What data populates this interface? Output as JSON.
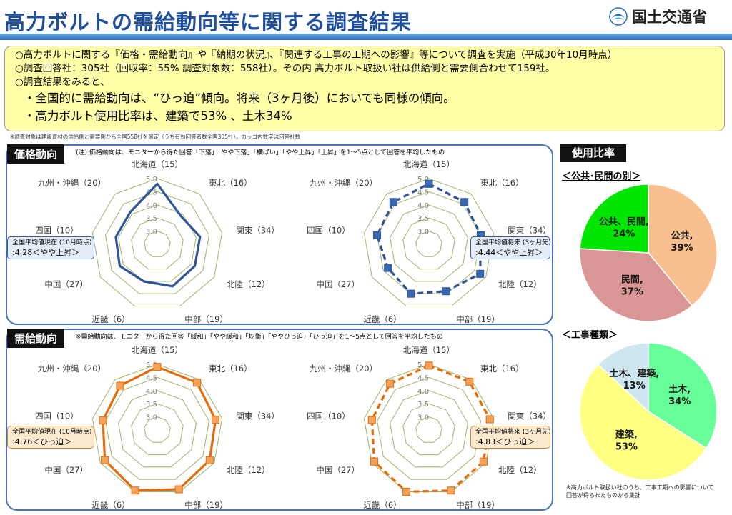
{
  "header": {
    "title": "高力ボルトの需給動向等に関する調査結果",
    "logo_text": "国土交通省"
  },
  "summary": {
    "line1": "○高力ボルトに関する『価格・需給動向』や『納期の状況』、『関連する工事の工期への影響』等について調査を実施（平成30年10月時点）",
    "line2": "○調査回答社：305社（回収率：55% 調査対象数：558社）。その内 高力ボルト取扱い社は供給側と需要側合わせて159社。",
    "line3": "○調査結果をみると、",
    "line4": "・全国的に需給動向は、“ひっ迫”傾向。将来（3ヶ月後）においても同様の傾向。",
    "line5": "・高力ボルト使用比率は、建築で53% 、土木34%"
  },
  "footnote": "※調査対象は建設資材の供給側と需要側から全国558社を選定（うち有効回答者数全国305社）。カッコ内数字は回答社数",
  "price": {
    "label": "価格動向",
    "note": "(注) 価格動向は、モニターから得た回答「下落」「やや下落」「横ばい」「やや上昇」「上昇」を1～5点として回答を平均したもの",
    "current_title": "全国平均値現在 (10月時点)",
    "current_value": ":4.28＜やや上昇＞",
    "future_title": "全国平均値将来 (3ヶ月先)",
    "future_value": ":4.44＜やや上昇＞"
  },
  "demand": {
    "label": "需給動向",
    "note": "※需給動向は、モニターから得た回答「緩和」「やや緩和」「均衡」「ややひっ迫」「ひっ迫」を1～5点として回答を平均したもの",
    "current_title": "全国平均値現在 (10月時点)",
    "current_value": ":4.76＜ひっ迫＞",
    "future_title": "全国平均値将来 (3ヶ月先)",
    "future_value": ":4.83＜ひっ迫＞"
  },
  "ratio": {
    "label": "使用比率",
    "pie1_title": "＜公共･民間の別＞",
    "pie2_title": "＜工事種類＞",
    "note_line1": "※高力ボルト取扱い社のうち、工事工期への影響について",
    "note_line2": "回答が得られたものから集計"
  },
  "chart_data": [
    {
      "type": "radar",
      "name": "価格動向 現在",
      "categories": [
        "北海道（15）",
        "東北（16）",
        "関東（34）",
        "北陸（12）",
        "中部（19）",
        "近畿（6）",
        "中国（27）",
        "四国（10）",
        "九州・沖縄（20）"
      ],
      "ticks": [
        "3.0",
        "3.5",
        "4.0",
        "4.5",
        "5.0"
      ],
      "range": [
        2.5,
        5.0
      ],
      "values": [
        4.8,
        3.9,
        4.15,
        4.15,
        4.2,
        4.0,
        4.15,
        4.1,
        4.1
      ],
      "color": "#2f5597",
      "dashed": false,
      "markers": false
    },
    {
      "type": "radar",
      "name": "価格動向 将来",
      "categories": [
        "北海道（15）",
        "東北（16）",
        "関東（34）",
        "北陸（12）",
        "中部（19）",
        "近畿（6）",
        "中国（27）",
        "四国（10）",
        "九州・沖縄（20）"
      ],
      "ticks": [
        "3.0",
        "3.5",
        "4.0",
        "4.5",
        "5.0"
      ],
      "range": [
        2.5,
        5.0
      ],
      "values": [
        4.8,
        4.6,
        4.5,
        4.75,
        4.4,
        4.5,
        4.3,
        4.5,
        4.6
      ],
      "color": "#2f5597",
      "dashed": true,
      "markers": true
    },
    {
      "type": "radar",
      "name": "需給動向 現在",
      "categories": [
        "北海道（15）",
        "東北（16）",
        "関東（34）",
        "北陸（12）",
        "中部（19）",
        "近畿（6）",
        "中国（27）",
        "四国（10）",
        "九州・沖縄（20）"
      ],
      "ticks": [
        "3.0",
        "3.5",
        "4.0",
        "4.5",
        "5.0"
      ],
      "range": [
        2.5,
        5.0
      ],
      "values": [
        4.9,
        4.85,
        4.75,
        4.8,
        4.9,
        4.95,
        4.8,
        4.6,
        4.7
      ],
      "color": "#e36c09",
      "dashed": false,
      "markers": true
    },
    {
      "type": "radar",
      "name": "需給動向 将来",
      "categories": [
        "北海道（15）",
        "東北（16）",
        "関東（34）",
        "北陸（12）",
        "中部（19）",
        "近畿（6）",
        "中国（27）",
        "四国（10）",
        "九州・沖縄（20）"
      ],
      "ticks": [
        "3.0",
        "3.5",
        "4.0",
        "4.5",
        "5.0"
      ],
      "range": [
        2.5,
        5.0
      ],
      "values": [
        4.95,
        4.9,
        4.85,
        4.9,
        4.95,
        5.0,
        4.9,
        4.7,
        4.8
      ],
      "color": "#e36c09",
      "dashed": true,
      "markers": true
    },
    {
      "type": "pie",
      "slices": [
        {
          "label": "公共,",
          "pct": "39%",
          "value": 39,
          "color": "#f9c08f"
        },
        {
          "label": "民間,",
          "pct": "37%",
          "value": 37,
          "color": "#d99694"
        },
        {
          "label": "公共、民間,",
          "pct": "24%",
          "value": 24,
          "color": "#00e600"
        }
      ]
    },
    {
      "type": "pie",
      "slices": [
        {
          "label": "土木,",
          "pct": "34%",
          "value": 34,
          "color": "#66ff99"
        },
        {
          "label": "建築,",
          "pct": "53%",
          "value": 53,
          "color": "#ffff80"
        },
        {
          "label": "土木、建築,",
          "pct": "13%",
          "value": 13,
          "color": "#cde6ef"
        }
      ]
    }
  ]
}
